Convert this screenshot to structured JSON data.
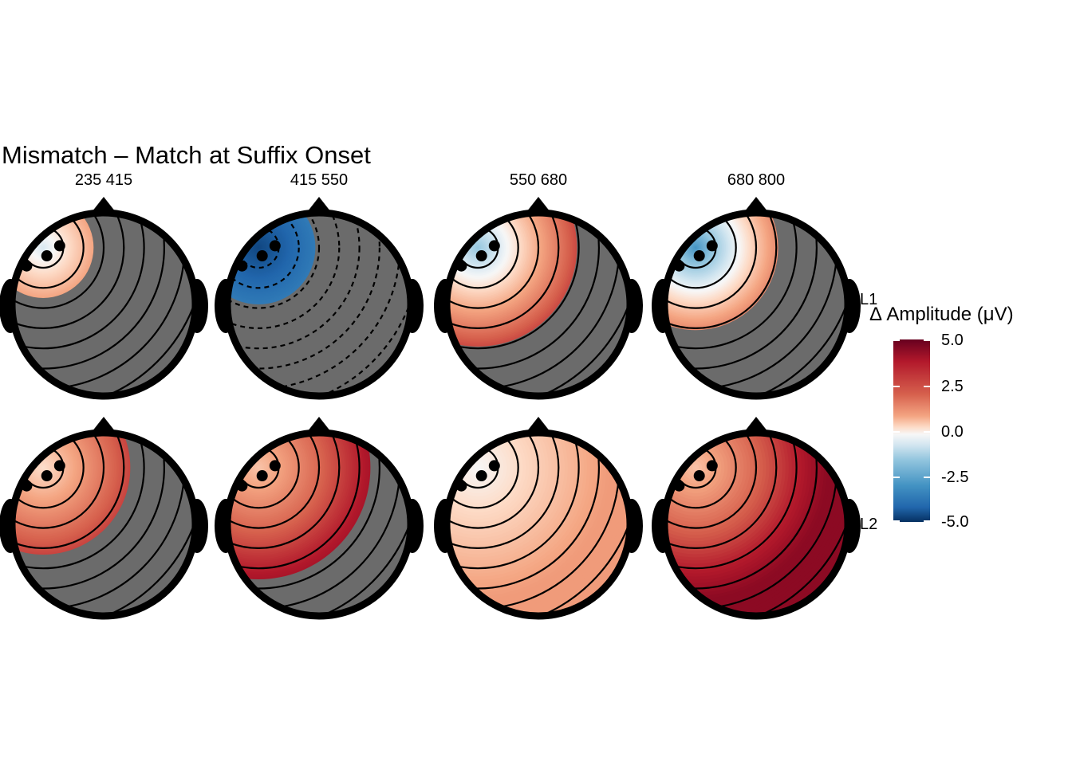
{
  "title": "Mismatch – Match at Suffix Onset",
  "chart_data": {
    "type": "heatmap",
    "title": "Mismatch – Match at Suffix Onset",
    "columns": [
      {
        "start": "235",
        "end": "415"
      },
      {
        "start": "415",
        "end": "550"
      },
      {
        "start": "550",
        "end": "680"
      },
      {
        "start": "680",
        "end": "800"
      }
    ],
    "rows": [
      "L1",
      "L2"
    ],
    "panels": [
      {
        "row": "L1",
        "window": "235-415",
        "min": -0.5,
        "max": 5.0,
        "sig_extent": 0.55,
        "dashed_contours": false
      },
      {
        "row": "L1",
        "window": "415-550",
        "min": -4.5,
        "max": -1.5,
        "sig_extent": 0.62,
        "dashed_contours": true
      },
      {
        "row": "L1",
        "window": "550-680",
        "min": -1.5,
        "max": 5.0,
        "sig_extent": 1.08,
        "dashed_contours": false
      },
      {
        "row": "L1",
        "window": "680-800",
        "min": -2.5,
        "max": 5.0,
        "sig_extent": 0.9,
        "dashed_contours": false
      },
      {
        "row": "L2",
        "window": "235-415",
        "min": 0.5,
        "max": 5.0,
        "sig_extent": 0.95,
        "dashed_contours": false
      },
      {
        "row": "L2",
        "window": "415-550",
        "min": 1.0,
        "max": 5.0,
        "sig_extent": 1.22,
        "dashed_contours": false
      },
      {
        "row": "L2",
        "window": "550-680",
        "min": 0.0,
        "max": 1.8,
        "sig_extent": 9.0,
        "dashed_contours": false
      },
      {
        "row": "L2",
        "window": "680-800",
        "min": 1.0,
        "max": 5.0,
        "sig_extent": 9.0,
        "dashed_contours": false
      }
    ],
    "colorbar": {
      "label": "Δ Amplitude (μV)",
      "range": [
        -5.0,
        5.0
      ],
      "ticks": [
        "5.0",
        "2.5",
        "0.0",
        "-2.5",
        "-5.0"
      ],
      "palette": "diverging blue-white-red"
    },
    "non_significant_fill": "#6b6b6b",
    "head_outline_color": "#000000"
  }
}
